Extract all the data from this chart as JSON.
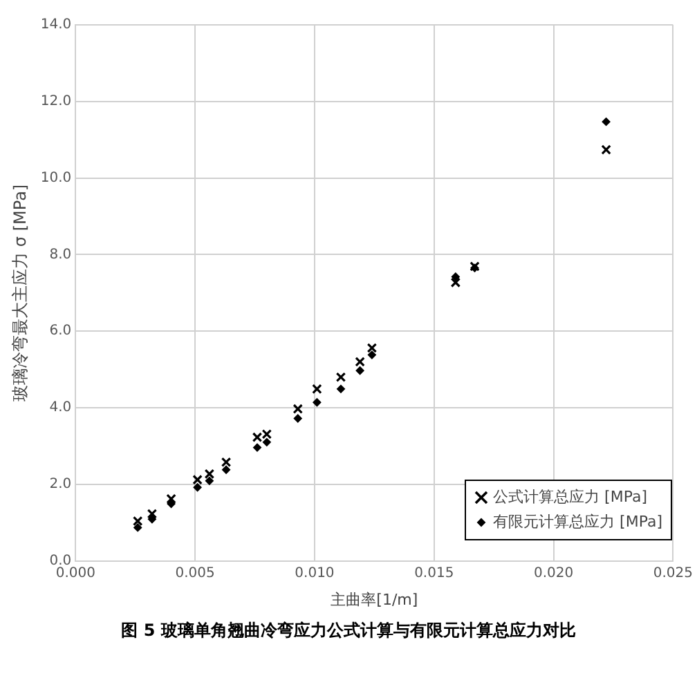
{
  "chart_data": {
    "type": "scatter",
    "title": "图 5 玻璃单角翘曲冷弯应力公式计算与有限元计算总应力对比",
    "xlabel": "主曲率[1/m]",
    "ylabel": "玻璃冷弯最大主应力 σ [MPa]",
    "series": [
      {
        "name": "公式计算总应力 [MPa]",
        "color": "#000000",
        "marker": "cross",
        "x": [
          0.0026,
          0.0032,
          0.004,
          0.0051,
          0.0056,
          0.0063,
          0.0076,
          0.008,
          0.0093,
          0.0101,
          0.0111,
          0.0119,
          0.0124,
          0.0159,
          0.0167,
          0.0222
        ],
        "values": [
          1.04,
          1.23,
          1.62,
          2.12,
          2.27,
          2.58,
          3.23,
          3.31,
          3.97,
          4.49,
          4.8,
          5.2,
          5.56,
          7.27,
          7.69,
          10.74
        ]
      },
      {
        "name": "有限元计算总应力 [MPa]",
        "color": "#000000",
        "marker": "diamond",
        "x": [
          0.0026,
          0.0032,
          0.004,
          0.0051,
          0.0056,
          0.0063,
          0.0076,
          0.008,
          0.0093,
          0.0101,
          0.0111,
          0.0119,
          0.0124,
          0.0159,
          0.0167,
          0.0222
        ],
        "values": [
          0.87,
          1.09,
          1.49,
          1.92,
          2.09,
          2.38,
          2.96,
          3.1,
          3.72,
          4.14,
          4.49,
          4.97,
          5.38,
          7.42,
          7.65,
          11.47
        ]
      }
    ],
    "xlim": [
      0,
      0.025
    ],
    "xticks": [
      {
        "value": 0,
        "label": "0.000"
      },
      {
        "value": 0.005,
        "label": "0.005"
      },
      {
        "value": 0.01,
        "label": "0.010"
      },
      {
        "value": 0.015,
        "label": "0.015"
      },
      {
        "value": 0.02,
        "label": "0.020"
      },
      {
        "value": 0.025,
        "label": "0.025"
      }
    ],
    "ylim": [
      0,
      14
    ],
    "yticks": [
      {
        "value": 0,
        "label": "0.0"
      },
      {
        "value": 2,
        "label": "2.0"
      },
      {
        "value": 4,
        "label": "4.0"
      },
      {
        "value": 6,
        "label": "6.0"
      },
      {
        "value": 8,
        "label": "8.0"
      },
      {
        "value": 10,
        "label": "10.0"
      },
      {
        "value": 12,
        "label": "12.0"
      },
      {
        "value": 14,
        "label": "14.0"
      }
    ],
    "grid": true,
    "legend": "bottom right"
  }
}
